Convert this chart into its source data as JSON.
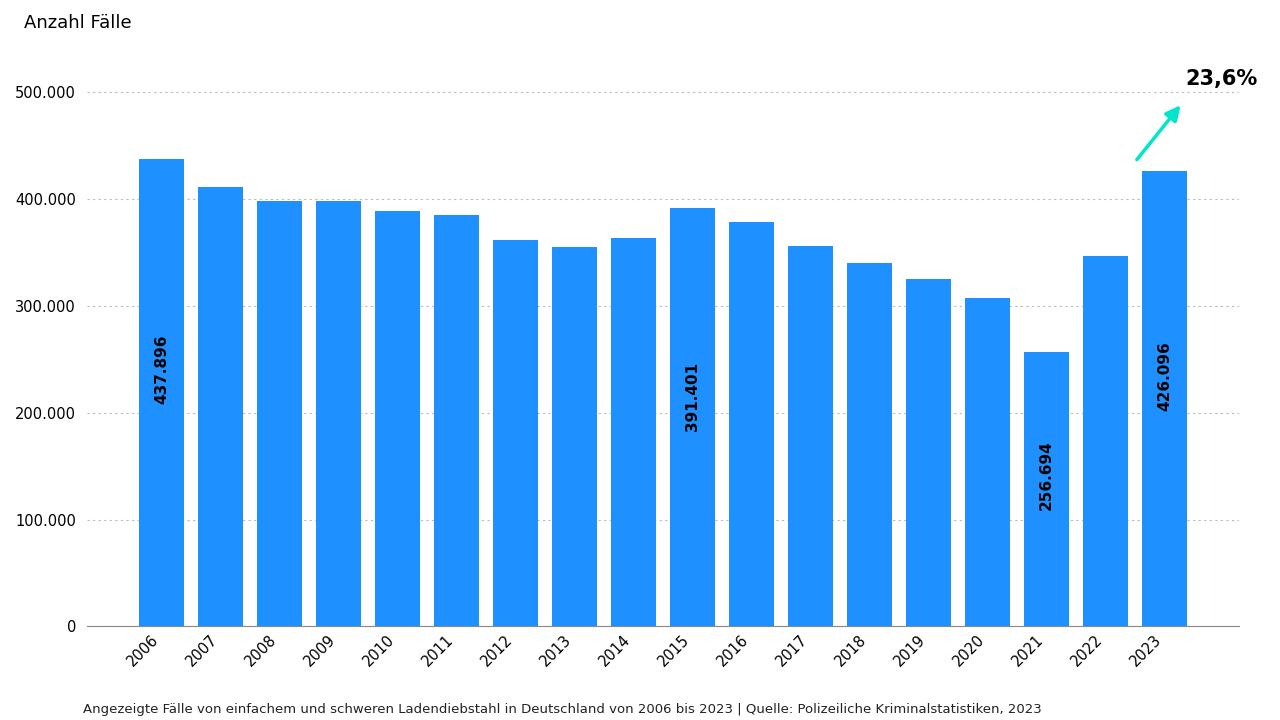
{
  "years": [
    2006,
    2007,
    2008,
    2009,
    2010,
    2011,
    2012,
    2013,
    2014,
    2015,
    2016,
    2017,
    2018,
    2019,
    2020,
    2021,
    2022,
    2023
  ],
  "values": [
    437896,
    411000,
    398000,
    398000,
    389000,
    385000,
    362000,
    355000,
    364000,
    391401,
    379000,
    356000,
    340000,
    325000,
    307000,
    256694,
    347000,
    426096
  ],
  "labeled_bars": {
    "2006": "437.896",
    "2015": "391.401",
    "2021": "256.694",
    "2023": "426.096"
  },
  "bar_color": "#1E90FF",
  "ylabel": "Anzahl Fälle",
  "ylim": [
    0,
    540000
  ],
  "yticks": [
    0,
    100000,
    200000,
    300000,
    400000,
    500000
  ],
  "ytick_labels": [
    "0",
    "100.000",
    "200.000",
    "300.000",
    "400.000",
    "500.000"
  ],
  "annotation_text": "23,6%",
  "annotation_color": "#000000",
  "arrow_color": "#00E5CC",
  "caption": "Angezeigte Fälle von einfachem und schweren Ladendiebstahl in Deutschland von 2006 bis 2023 | Quelle: Polizeiliche Kriminalstatistiken, 2023",
  "background_color": "#FFFFFF",
  "grid_color": "#BBBBBB",
  "label_fontsize": 11,
  "ylabel_fontsize": 13,
  "tick_fontsize": 10.5,
  "caption_fontsize": 9.5
}
